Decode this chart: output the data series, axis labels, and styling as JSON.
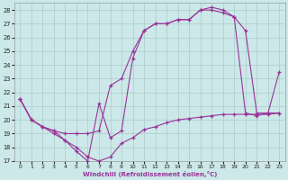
{
  "xlabel": "Windchill (Refroidissement éolien,°C)",
  "xlim": [
    -0.5,
    23.5
  ],
  "ylim": [
    17,
    28.5
  ],
  "yticks": [
    17,
    18,
    19,
    20,
    21,
    22,
    23,
    24,
    25,
    26,
    27,
    28
  ],
  "xticks": [
    0,
    1,
    2,
    3,
    4,
    5,
    6,
    7,
    8,
    9,
    10,
    11,
    12,
    13,
    14,
    15,
    16,
    17,
    18,
    19,
    20,
    21,
    22,
    23
  ],
  "bg_color": "#cce8e8",
  "grid_color": "#aacccc",
  "line_color": "#993399",
  "line1_x": [
    0,
    1,
    2,
    3,
    4,
    5,
    6,
    7,
    8,
    9,
    10,
    11,
    12,
    13,
    14,
    15,
    16,
    17,
    18,
    19,
    20,
    21,
    22,
    23
  ],
  "line1_y": [
    21.5,
    20.0,
    19.5,
    19.0,
    18.5,
    17.7,
    17.0,
    21.2,
    18.7,
    19.2,
    24.5,
    26.5,
    27.0,
    27.0,
    27.3,
    27.3,
    28.0,
    28.0,
    27.8,
    27.5,
    26.5,
    20.5,
    20.5,
    23.5
  ],
  "line2_x": [
    0,
    1,
    2,
    3,
    4,
    5,
    6,
    7,
    8,
    9,
    10,
    11,
    12,
    13,
    14,
    15,
    16,
    17,
    18,
    19,
    20,
    21,
    22,
    23
  ],
  "line2_y": [
    21.5,
    20.0,
    19.5,
    19.2,
    19.0,
    19.0,
    19.0,
    19.2,
    22.5,
    23.0,
    25.0,
    26.5,
    27.0,
    27.0,
    27.3,
    27.3,
    28.0,
    28.2,
    28.0,
    27.5,
    20.5,
    20.3,
    20.5,
    20.5
  ],
  "line3_x": [
    0,
    1,
    2,
    3,
    4,
    5,
    6,
    7,
    8,
    9,
    10,
    11,
    12,
    13,
    14,
    15,
    16,
    17,
    18,
    19,
    20,
    21,
    22,
    23
  ],
  "line3_y": [
    21.5,
    20.0,
    19.5,
    19.2,
    18.5,
    18.0,
    17.3,
    17.0,
    17.3,
    18.3,
    18.7,
    19.3,
    19.5,
    19.8,
    20.0,
    20.1,
    20.2,
    20.3,
    20.4,
    20.4,
    20.4,
    20.4,
    20.4,
    20.5
  ]
}
